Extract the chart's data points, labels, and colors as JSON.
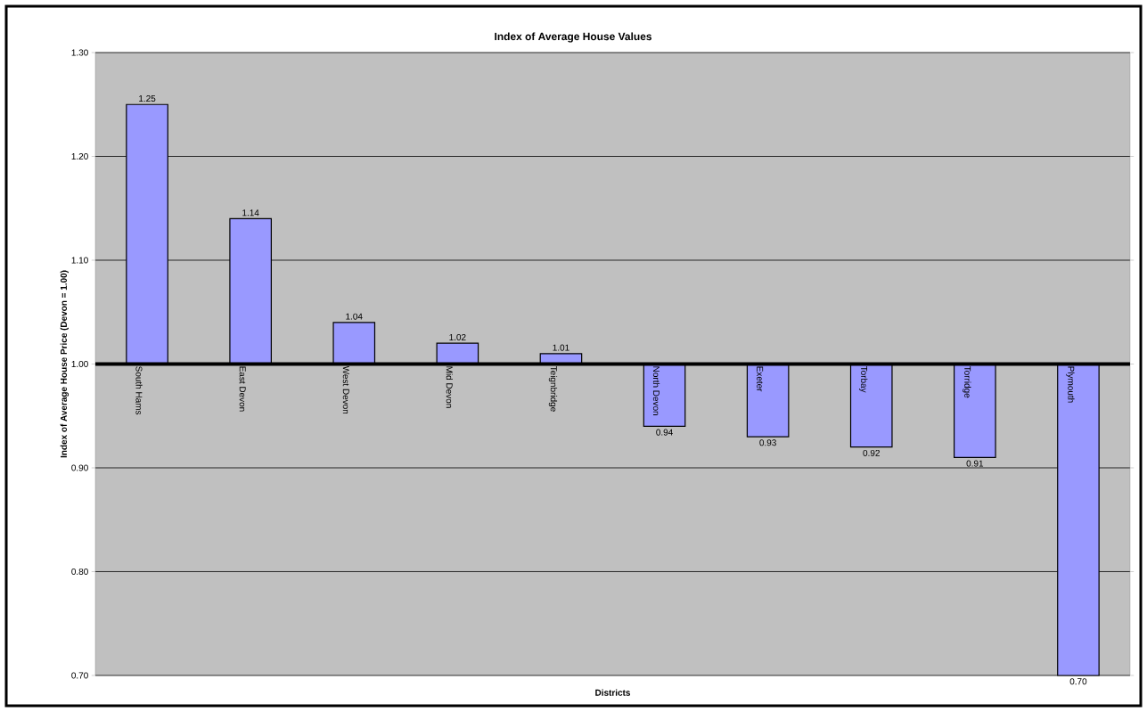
{
  "chart_data": {
    "type": "bar",
    "title": "Index of Average House Values",
    "xlabel": "Districts",
    "ylabel": "Index of Average House Price (Devon = 1.00)",
    "categories": [
      "South Hams",
      "East Devon",
      "West Devon",
      "Mid Devon",
      "Teignbridge",
      "North Devon",
      "Exeter",
      "Torbay",
      "Torridge",
      "Plymouth"
    ],
    "base": [
      1.0,
      1.0,
      1.0,
      1.0,
      1.0,
      1.0,
      1.0,
      1.0,
      1.0,
      1.0
    ],
    "values": [
      0.25,
      0.14,
      0.04,
      0.02,
      0.01,
      -0.06,
      -0.07,
      -0.08,
      -0.09,
      -0.3
    ],
    "value_labels": [
      "1.25",
      "1.14",
      "1.04",
      "1.02",
      "1.01",
      "0.94",
      "0.93",
      "0.92",
      "0.91",
      "0.70"
    ],
    "color": "#9999ff",
    "ylim": [
      0.7,
      1.3
    ],
    "yticks": [
      {
        "value": 0.7,
        "label": "0.70"
      },
      {
        "value": 0.8,
        "label": "0.80"
      },
      {
        "value": 0.9,
        "label": "0.90"
      },
      {
        "value": 1.0,
        "label": "1.00"
      },
      {
        "value": 1.1,
        "label": "1.10"
      },
      {
        "value": 1.2,
        "label": "1.20"
      },
      {
        "value": 1.3,
        "label": "1.30"
      }
    ],
    "grid": "y"
  }
}
